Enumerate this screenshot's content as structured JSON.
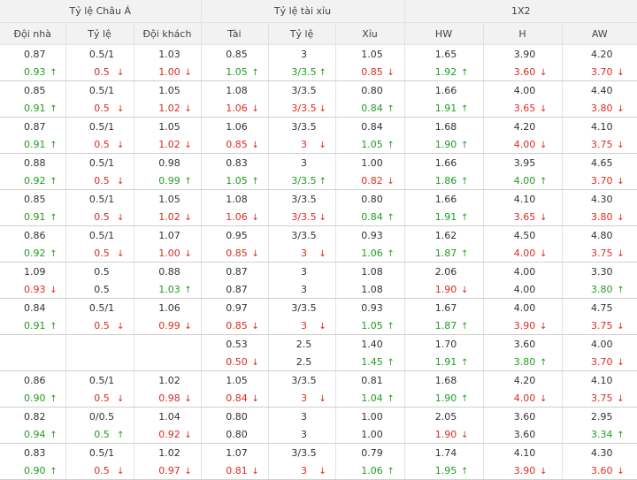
{
  "groups": [
    "Tỷ lệ Châu Á",
    "Tỷ lệ tài xỉu",
    "1X2"
  ],
  "columns": [
    "Đội nhà",
    "Tỷ lệ",
    "Đội khách",
    "Tài",
    "Tỷ lệ",
    "Xỉu",
    "HW",
    "H",
    "AW"
  ],
  "colors": {
    "up": "#1e9e1e",
    "down": "#e02b20",
    "header_bg": "#f2f2f2"
  },
  "icons": {
    "up": "arrow-up-icon",
    "down": "arrow-down-icon"
  },
  "rows": [
    [
      [
        {
          "v": "0.87"
        },
        {
          "v": "0.5/1"
        },
        {
          "v": "1.03"
        },
        {
          "v": "0.85"
        },
        {
          "v": "3"
        },
        {
          "v": "1.05"
        },
        {
          "v": "1.65"
        },
        {
          "v": "3.90"
        },
        {
          "v": "4.20"
        }
      ],
      [
        {
          "v": "0.93",
          "d": "up"
        },
        {
          "v": "0.5",
          "d": "down"
        },
        {
          "v": "1.00",
          "d": "down"
        },
        {
          "v": "1.05",
          "d": "up"
        },
        {
          "v": "3/3.5",
          "d": "up"
        },
        {
          "v": "0.85",
          "d": "down"
        },
        {
          "v": "1.92",
          "d": "up"
        },
        {
          "v": "3.60",
          "d": "down"
        },
        {
          "v": "3.70",
          "d": "down"
        }
      ]
    ],
    [
      [
        {
          "v": "0.85"
        },
        {
          "v": "0.5/1"
        },
        {
          "v": "1.05"
        },
        {
          "v": "1.08"
        },
        {
          "v": "3/3.5"
        },
        {
          "v": "0.80"
        },
        {
          "v": "1.66"
        },
        {
          "v": "4.00"
        },
        {
          "v": "4.40"
        }
      ],
      [
        {
          "v": "0.91",
          "d": "up"
        },
        {
          "v": "0.5",
          "d": "down"
        },
        {
          "v": "1.02",
          "d": "down"
        },
        {
          "v": "1.06",
          "d": "down"
        },
        {
          "v": "3/3.5",
          "d": "down"
        },
        {
          "v": "0.84",
          "d": "up"
        },
        {
          "v": "1.91",
          "d": "up"
        },
        {
          "v": "3.65",
          "d": "down"
        },
        {
          "v": "3.80",
          "d": "down"
        }
      ]
    ],
    [
      [
        {
          "v": "0.87"
        },
        {
          "v": "0.5/1"
        },
        {
          "v": "1.05"
        },
        {
          "v": "1.06"
        },
        {
          "v": "3/3.5"
        },
        {
          "v": "0.84"
        },
        {
          "v": "1.68"
        },
        {
          "v": "4.20"
        },
        {
          "v": "4.10"
        }
      ],
      [
        {
          "v": "0.91",
          "d": "up"
        },
        {
          "v": "0.5",
          "d": "down"
        },
        {
          "v": "1.02",
          "d": "down"
        },
        {
          "v": "0.85",
          "d": "down"
        },
        {
          "v": "3",
          "d": "down"
        },
        {
          "v": "1.05",
          "d": "up"
        },
        {
          "v": "1.90",
          "d": "up"
        },
        {
          "v": "4.00",
          "d": "down"
        },
        {
          "v": "3.75",
          "d": "down"
        }
      ]
    ],
    [
      [
        {
          "v": "0.88"
        },
        {
          "v": "0.5/1"
        },
        {
          "v": "0.98"
        },
        {
          "v": "0.83"
        },
        {
          "v": "3"
        },
        {
          "v": "1.00"
        },
        {
          "v": "1.66"
        },
        {
          "v": "3.95"
        },
        {
          "v": "4.65"
        }
      ],
      [
        {
          "v": "0.92",
          "d": "up"
        },
        {
          "v": "0.5",
          "d": "down"
        },
        {
          "v": "0.99",
          "d": "up"
        },
        {
          "v": "1.05",
          "d": "up"
        },
        {
          "v": "3/3.5",
          "d": "up"
        },
        {
          "v": "0.82",
          "d": "down"
        },
        {
          "v": "1.86",
          "d": "up"
        },
        {
          "v": "4.00",
          "d": "up"
        },
        {
          "v": "3.70",
          "d": "down"
        }
      ]
    ],
    [
      [
        {
          "v": "0.85"
        },
        {
          "v": "0.5/1"
        },
        {
          "v": "1.05"
        },
        {
          "v": "1.08"
        },
        {
          "v": "3/3.5"
        },
        {
          "v": "0.80"
        },
        {
          "v": "1.66"
        },
        {
          "v": "4.10"
        },
        {
          "v": "4.30"
        }
      ],
      [
        {
          "v": "0.91",
          "d": "up"
        },
        {
          "v": "0.5",
          "d": "down"
        },
        {
          "v": "1.02",
          "d": "down"
        },
        {
          "v": "1.06",
          "d": "down"
        },
        {
          "v": "3/3.5",
          "d": "down"
        },
        {
          "v": "0.84",
          "d": "up"
        },
        {
          "v": "1.91",
          "d": "up"
        },
        {
          "v": "3.65",
          "d": "down"
        },
        {
          "v": "3.80",
          "d": "down"
        }
      ]
    ],
    [
      [
        {
          "v": "0.86"
        },
        {
          "v": "0.5/1"
        },
        {
          "v": "1.07"
        },
        {
          "v": "0.95"
        },
        {
          "v": "3/3.5"
        },
        {
          "v": "0.93"
        },
        {
          "v": "1.62"
        },
        {
          "v": "4.50"
        },
        {
          "v": "4.80"
        }
      ],
      [
        {
          "v": "0.92",
          "d": "up"
        },
        {
          "v": "0.5",
          "d": "down"
        },
        {
          "v": "1.00",
          "d": "down"
        },
        {
          "v": "0.85",
          "d": "down"
        },
        {
          "v": "3",
          "d": "down"
        },
        {
          "v": "1.06",
          "d": "up"
        },
        {
          "v": "1.87",
          "d": "up"
        },
        {
          "v": "4.00",
          "d": "down"
        },
        {
          "v": "3.75",
          "d": "down"
        }
      ]
    ],
    [
      [
        {
          "v": "1.09"
        },
        {
          "v": "0.5"
        },
        {
          "v": "0.88"
        },
        {
          "v": "0.87"
        },
        {
          "v": "3"
        },
        {
          "v": "1.08"
        },
        {
          "v": "2.06"
        },
        {
          "v": "4.00"
        },
        {
          "v": "3.30"
        }
      ],
      [
        {
          "v": "0.93",
          "d": "down"
        },
        {
          "v": "0.5"
        },
        {
          "v": "1.03",
          "d": "up"
        },
        {
          "v": "0.87"
        },
        {
          "v": "3"
        },
        {
          "v": "1.08"
        },
        {
          "v": "1.90",
          "d": "down"
        },
        {
          "v": "4.00"
        },
        {
          "v": "3.80",
          "d": "up"
        }
      ]
    ],
    [
      [
        {
          "v": "0.84"
        },
        {
          "v": "0.5/1"
        },
        {
          "v": "1.06"
        },
        {
          "v": "0.97"
        },
        {
          "v": "3/3.5"
        },
        {
          "v": "0.93"
        },
        {
          "v": "1.67"
        },
        {
          "v": "4.00"
        },
        {
          "v": "4.75"
        }
      ],
      [
        {
          "v": "0.91",
          "d": "up"
        },
        {
          "v": "0.5",
          "d": "down"
        },
        {
          "v": "0.99",
          "d": "down"
        },
        {
          "v": "0.85",
          "d": "down"
        },
        {
          "v": "3",
          "d": "down"
        },
        {
          "v": "1.05",
          "d": "up"
        },
        {
          "v": "1.87",
          "d": "up"
        },
        {
          "v": "3.90",
          "d": "down"
        },
        {
          "v": "3.75",
          "d": "down"
        }
      ]
    ],
    [
      [
        {
          "v": ""
        },
        {
          "v": ""
        },
        {
          "v": ""
        },
        {
          "v": "0.53"
        },
        {
          "v": "2.5"
        },
        {
          "v": "1.40"
        },
        {
          "v": "1.70"
        },
        {
          "v": "3.60"
        },
        {
          "v": "4.00"
        }
      ],
      [
        {
          "v": ""
        },
        {
          "v": ""
        },
        {
          "v": ""
        },
        {
          "v": "0.50",
          "d": "down"
        },
        {
          "v": "2.5"
        },
        {
          "v": "1.45",
          "d": "up"
        },
        {
          "v": "1.91",
          "d": "up"
        },
        {
          "v": "3.80",
          "d": "up"
        },
        {
          "v": "3.70",
          "d": "down"
        }
      ]
    ],
    [
      [
        {
          "v": "0.86"
        },
        {
          "v": "0.5/1"
        },
        {
          "v": "1.02"
        },
        {
          "v": "1.05"
        },
        {
          "v": "3/3.5"
        },
        {
          "v": "0.81"
        },
        {
          "v": "1.68"
        },
        {
          "v": "4.20"
        },
        {
          "v": "4.10"
        }
      ],
      [
        {
          "v": "0.90",
          "d": "up"
        },
        {
          "v": "0.5",
          "d": "down"
        },
        {
          "v": "0.98",
          "d": "down"
        },
        {
          "v": "0.84",
          "d": "down"
        },
        {
          "v": "3",
          "d": "down"
        },
        {
          "v": "1.04",
          "d": "up"
        },
        {
          "v": "1.90",
          "d": "up"
        },
        {
          "v": "4.00",
          "d": "down"
        },
        {
          "v": "3.75",
          "d": "down"
        }
      ]
    ],
    [
      [
        {
          "v": "0.82"
        },
        {
          "v": "0/0.5"
        },
        {
          "v": "1.04"
        },
        {
          "v": "0.80"
        },
        {
          "v": "3"
        },
        {
          "v": "1.00"
        },
        {
          "v": "2.05"
        },
        {
          "v": "3.60"
        },
        {
          "v": "2.95"
        }
      ],
      [
        {
          "v": "0.94",
          "d": "up"
        },
        {
          "v": "0.5",
          "d": "up"
        },
        {
          "v": "0.92",
          "d": "down"
        },
        {
          "v": "0.80"
        },
        {
          "v": "3"
        },
        {
          "v": "1.00"
        },
        {
          "v": "1.90",
          "d": "down"
        },
        {
          "v": "3.60"
        },
        {
          "v": "3.34",
          "d": "up"
        }
      ]
    ],
    [
      [
        {
          "v": "0.83"
        },
        {
          "v": "0.5/1"
        },
        {
          "v": "1.02"
        },
        {
          "v": "1.07"
        },
        {
          "v": "3/3.5"
        },
        {
          "v": "0.79"
        },
        {
          "v": "1.74"
        },
        {
          "v": "4.10"
        },
        {
          "v": "4.30"
        }
      ],
      [
        {
          "v": "0.90",
          "d": "up"
        },
        {
          "v": "0.5",
          "d": "down"
        },
        {
          "v": "0.97",
          "d": "down"
        },
        {
          "v": "0.81",
          "d": "down"
        },
        {
          "v": "3",
          "d": "down"
        },
        {
          "v": "1.06",
          "d": "up"
        },
        {
          "v": "1.95",
          "d": "up"
        },
        {
          "v": "3.90",
          "d": "down"
        },
        {
          "v": "3.60",
          "d": "down"
        }
      ]
    ]
  ]
}
